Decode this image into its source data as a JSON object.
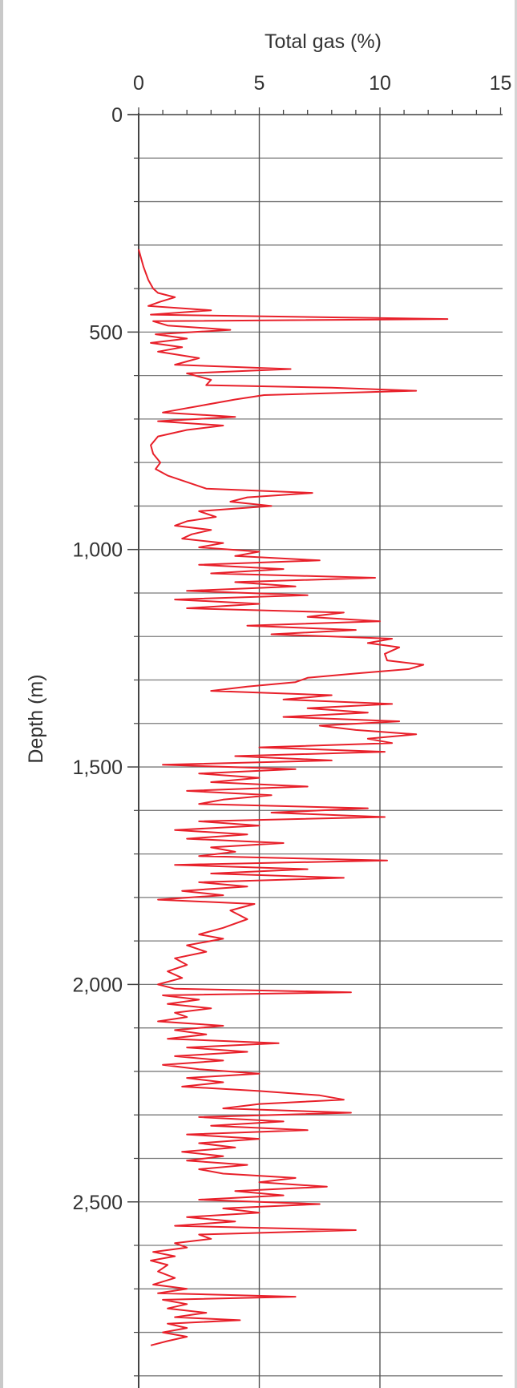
{
  "chart_data": {
    "type": "line",
    "orientation": "vertical-depth-log",
    "title": "",
    "xlabel": "Total gas (%)",
    "ylabel": "Depth (m)",
    "xlim": [
      0,
      15
    ],
    "ylim": [
      0,
      2900
    ],
    "y_inverted": true,
    "x_axis_position": "top",
    "x_ticks": [
      0,
      5,
      10,
      15
    ],
    "x_tick_labels": [
      "0",
      "5",
      "10",
      "15"
    ],
    "y_ticks": [
      0,
      500,
      1000,
      1500,
      2000,
      2500
    ],
    "y_tick_labels": [
      "0",
      "500",
      "1,000",
      "1,500",
      "2,000",
      "2,500"
    ],
    "x_minor_step": 1,
    "grid": {
      "vertical_major_every": 5,
      "horizontal_every": 100
    },
    "series": [
      {
        "color": "#e8202a",
        "points": [
          [
            0.0,
            310
          ],
          [
            0.1,
            330
          ],
          [
            0.2,
            350
          ],
          [
            0.4,
            380
          ],
          [
            0.6,
            400
          ],
          [
            0.8,
            410
          ],
          [
            1.5,
            420
          ],
          [
            0.9,
            430
          ],
          [
            0.4,
            440
          ],
          [
            3.0,
            450
          ],
          [
            0.5,
            460
          ],
          [
            12.8,
            470
          ],
          [
            0.6,
            475
          ],
          [
            1.2,
            485
          ],
          [
            3.8,
            495
          ],
          [
            0.7,
            505
          ],
          [
            2.0,
            515
          ],
          [
            0.5,
            525
          ],
          [
            1.8,
            535
          ],
          [
            0.8,
            545
          ],
          [
            2.5,
            560
          ],
          [
            1.5,
            575
          ],
          [
            6.3,
            585
          ],
          [
            2.0,
            595
          ],
          [
            3.0,
            610
          ],
          [
            2.8,
            622
          ],
          [
            8.0,
            628
          ],
          [
            11.5,
            635
          ],
          [
            5.2,
            645
          ],
          [
            4.0,
            655
          ],
          [
            2.5,
            670
          ],
          [
            1.0,
            685
          ],
          [
            4.0,
            695
          ],
          [
            0.8,
            705
          ],
          [
            3.5,
            715
          ],
          [
            2.0,
            725
          ],
          [
            0.8,
            740
          ],
          [
            0.5,
            760
          ],
          [
            0.6,
            780
          ],
          [
            0.9,
            800
          ],
          [
            0.7,
            815
          ],
          [
            1.2,
            830
          ],
          [
            2.0,
            845
          ],
          [
            2.8,
            860
          ],
          [
            7.2,
            870
          ],
          [
            4.5,
            880
          ],
          [
            3.8,
            890
          ],
          [
            5.5,
            900
          ],
          [
            2.5,
            912
          ],
          [
            3.2,
            925
          ],
          [
            2.0,
            935
          ],
          [
            1.5,
            945
          ],
          [
            3.0,
            955
          ],
          [
            2.2,
            965
          ],
          [
            1.8,
            975
          ],
          [
            3.5,
            985
          ],
          [
            2.5,
            995
          ],
          [
            5.0,
            1005
          ],
          [
            4.0,
            1015
          ],
          [
            7.5,
            1025
          ],
          [
            2.5,
            1035
          ],
          [
            6.0,
            1045
          ],
          [
            3.0,
            1055
          ],
          [
            9.8,
            1065
          ],
          [
            4.0,
            1075
          ],
          [
            6.5,
            1085
          ],
          [
            2.0,
            1095
          ],
          [
            7.0,
            1105
          ],
          [
            1.5,
            1115
          ],
          [
            5.0,
            1125
          ],
          [
            2.0,
            1135
          ],
          [
            8.5,
            1145
          ],
          [
            7.0,
            1155
          ],
          [
            10.0,
            1165
          ],
          [
            4.5,
            1175
          ],
          [
            9.0,
            1185
          ],
          [
            5.5,
            1195
          ],
          [
            10.5,
            1205
          ],
          [
            9.5,
            1215
          ],
          [
            10.8,
            1225
          ],
          [
            10.2,
            1240
          ],
          [
            10.3,
            1255
          ],
          [
            11.8,
            1265
          ],
          [
            11.2,
            1275
          ],
          [
            9.0,
            1285
          ],
          [
            7.0,
            1295
          ],
          [
            6.5,
            1305
          ],
          [
            4.5,
            1315
          ],
          [
            3.0,
            1325
          ],
          [
            8.0,
            1335
          ],
          [
            6.0,
            1345
          ],
          [
            10.5,
            1355
          ],
          [
            7.0,
            1365
          ],
          [
            9.5,
            1375
          ],
          [
            6.0,
            1385
          ],
          [
            10.8,
            1395
          ],
          [
            7.5,
            1405
          ],
          [
            9.0,
            1415
          ],
          [
            11.5,
            1425
          ],
          [
            9.5,
            1435
          ],
          [
            10.5,
            1445
          ],
          [
            5.0,
            1455
          ],
          [
            10.2,
            1465
          ],
          [
            4.0,
            1475
          ],
          [
            8.0,
            1485
          ],
          [
            1.0,
            1495
          ],
          [
            6.5,
            1505
          ],
          [
            2.5,
            1515
          ],
          [
            5.0,
            1525
          ],
          [
            3.0,
            1535
          ],
          [
            7.0,
            1545
          ],
          [
            2.0,
            1555
          ],
          [
            5.5,
            1565
          ],
          [
            3.5,
            1575
          ],
          [
            2.5,
            1585
          ],
          [
            9.5,
            1595
          ],
          [
            5.5,
            1605
          ],
          [
            10.2,
            1615
          ],
          [
            2.5,
            1625
          ],
          [
            5.0,
            1635
          ],
          [
            1.5,
            1645
          ],
          [
            4.5,
            1655
          ],
          [
            2.0,
            1665
          ],
          [
            6.0,
            1675
          ],
          [
            3.0,
            1685
          ],
          [
            4.0,
            1695
          ],
          [
            2.5,
            1705
          ],
          [
            10.3,
            1715
          ],
          [
            1.5,
            1725
          ],
          [
            7.0,
            1735
          ],
          [
            3.0,
            1745
          ],
          [
            8.5,
            1755
          ],
          [
            2.5,
            1765
          ],
          [
            4.5,
            1775
          ],
          [
            1.8,
            1785
          ],
          [
            3.5,
            1795
          ],
          [
            0.8,
            1805
          ],
          [
            4.8,
            1815
          ],
          [
            3.8,
            1830
          ],
          [
            4.5,
            1850
          ],
          [
            3.5,
            1870
          ],
          [
            2.5,
            1885
          ],
          [
            3.5,
            1895
          ],
          [
            2.0,
            1910
          ],
          [
            2.8,
            1925
          ],
          [
            1.5,
            1940
          ],
          [
            2.0,
            1955
          ],
          [
            1.2,
            1970
          ],
          [
            1.8,
            1985
          ],
          [
            0.8,
            2000
          ],
          [
            1.5,
            2010
          ],
          [
            8.8,
            2018
          ],
          [
            1.0,
            2025
          ],
          [
            2.5,
            2035
          ],
          [
            1.2,
            2045
          ],
          [
            3.0,
            2055
          ],
          [
            1.5,
            2065
          ],
          [
            2.0,
            2075
          ],
          [
            0.8,
            2085
          ],
          [
            3.5,
            2095
          ],
          [
            1.5,
            2105
          ],
          [
            2.8,
            2115
          ],
          [
            1.2,
            2125
          ],
          [
            5.8,
            2135
          ],
          [
            2.0,
            2145
          ],
          [
            4.5,
            2155
          ],
          [
            1.5,
            2165
          ],
          [
            3.5,
            2175
          ],
          [
            1.0,
            2185
          ],
          [
            2.5,
            2195
          ],
          [
            5.0,
            2205
          ],
          [
            2.0,
            2215
          ],
          [
            3.5,
            2225
          ],
          [
            1.8,
            2235
          ],
          [
            5.0,
            2245
          ],
          [
            7.5,
            2255
          ],
          [
            8.5,
            2265
          ],
          [
            5.0,
            2275
          ],
          [
            3.5,
            2285
          ],
          [
            8.8,
            2295
          ],
          [
            2.5,
            2305
          ],
          [
            6.0,
            2315
          ],
          [
            3.0,
            2325
          ],
          [
            7.0,
            2335
          ],
          [
            2.0,
            2345
          ],
          [
            5.0,
            2355
          ],
          [
            2.5,
            2365
          ],
          [
            4.0,
            2375
          ],
          [
            1.8,
            2385
          ],
          [
            3.5,
            2395
          ],
          [
            2.0,
            2405
          ],
          [
            4.5,
            2415
          ],
          [
            2.5,
            2425
          ],
          [
            3.5,
            2435
          ],
          [
            6.5,
            2445
          ],
          [
            5.0,
            2455
          ],
          [
            7.8,
            2465
          ],
          [
            4.0,
            2475
          ],
          [
            6.0,
            2485
          ],
          [
            2.5,
            2495
          ],
          [
            7.5,
            2505
          ],
          [
            3.5,
            2515
          ],
          [
            5.0,
            2525
          ],
          [
            2.0,
            2535
          ],
          [
            4.0,
            2545
          ],
          [
            1.5,
            2555
          ],
          [
            9.0,
            2565
          ],
          [
            2.5,
            2575
          ],
          [
            3.0,
            2585
          ],
          [
            1.5,
            2595
          ],
          [
            2.0,
            2605
          ],
          [
            0.6,
            2615
          ],
          [
            1.5,
            2625
          ],
          [
            0.5,
            2635
          ],
          [
            1.2,
            2645
          ],
          [
            0.8,
            2660
          ],
          [
            1.5,
            2675
          ],
          [
            0.6,
            2690
          ],
          [
            2.0,
            2700
          ],
          [
            0.8,
            2710
          ],
          [
            6.5,
            2718
          ],
          [
            1.0,
            2725
          ],
          [
            2.0,
            2735
          ],
          [
            1.2,
            2745
          ],
          [
            2.8,
            2755
          ],
          [
            1.5,
            2765
          ],
          [
            4.2,
            2772
          ],
          [
            1.2,
            2780
          ],
          [
            2.0,
            2790
          ],
          [
            1.0,
            2800
          ],
          [
            2.0,
            2810
          ],
          [
            1.2,
            2820
          ],
          [
            0.5,
            2830
          ]
        ]
      }
    ]
  }
}
